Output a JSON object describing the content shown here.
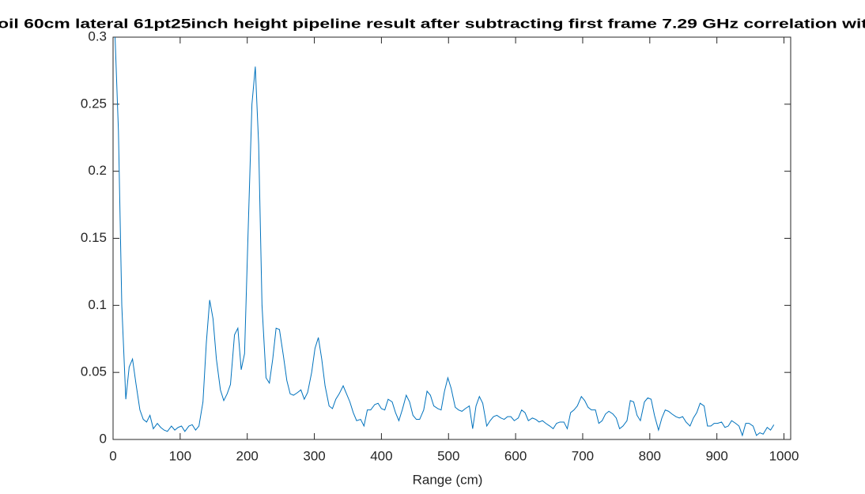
{
  "chart_data": {
    "type": "line",
    "title": "oil 60cm lateral 61pt25inch height pipeline result after subtracting first frame 7.29 GHz correlation wit",
    "xlabel": "Range (cm)",
    "xlim": [
      0,
      1010
    ],
    "xticks": [
      0,
      100,
      200,
      300,
      400,
      500,
      600,
      700,
      800,
      900,
      1000
    ],
    "ylim": [
      0,
      0.3
    ],
    "yticks": [
      0,
      0.05,
      0.1,
      0.15,
      0.2,
      0.25,
      0.3
    ],
    "series": [
      {
        "color": "#0072bd",
        "x": [
          3,
          8,
          13,
          19,
          24,
          29,
          34,
          40,
          45,
          50,
          55,
          60,
          66,
          71,
          76,
          81,
          87,
          92,
          97,
          102,
          107,
          113,
          118,
          123,
          128,
          134,
          139,
          144,
          149,
          154,
          160,
          165,
          170,
          175,
          181,
          186,
          191,
          196,
          201,
          207,
          212,
          217,
          222,
          228,
          233,
          238,
          243,
          248,
          254,
          259,
          264,
          269,
          275,
          280,
          285,
          290,
          296,
          301,
          306,
          311,
          316,
          322,
          327,
          332,
          337,
          343,
          348,
          353,
          358,
          363,
          369,
          374,
          379,
          384,
          390,
          395,
          400,
          405,
          410,
          416,
          421,
          426,
          431,
          437,
          442,
          447,
          452,
          457,
          463,
          468,
          473,
          478,
          484,
          489,
          494,
          499,
          504,
          510,
          515,
          520,
          525,
          531,
          536,
          541,
          546,
          551,
          557,
          562,
          567,
          572,
          578,
          583,
          588,
          593,
          598,
          604,
          609,
          614,
          619,
          625,
          630,
          635,
          640,
          645,
          651,
          656,
          661,
          666,
          672,
          677,
          682,
          687,
          692,
          698,
          703,
          708,
          713,
          719,
          724,
          729,
          734,
          739,
          745,
          750,
          755,
          760,
          766,
          771,
          776,
          781,
          786,
          792,
          797,
          802,
          807,
          813,
          818,
          823,
          828,
          833,
          839,
          844,
          849,
          854,
          860,
          865,
          870,
          875,
          881,
          886,
          891,
          896,
          901,
          907,
          912,
          917,
          922,
          928,
          933,
          938,
          943,
          948,
          954,
          959,
          964,
          969,
          975,
          980,
          985
        ],
        "values": [
          0.3,
          0.23,
          0.1,
          0.03,
          0.054,
          0.06,
          0.042,
          0.022,
          0.015,
          0.013,
          0.018,
          0.008,
          0.012,
          0.009,
          0.007,
          0.006,
          0.01,
          0.007,
          0.009,
          0.01,
          0.006,
          0.01,
          0.011,
          0.007,
          0.01,
          0.028,
          0.072,
          0.104,
          0.09,
          0.06,
          0.037,
          0.029,
          0.034,
          0.041,
          0.078,
          0.083,
          0.052,
          0.064,
          0.15,
          0.25,
          0.278,
          0.22,
          0.1,
          0.046,
          0.042,
          0.06,
          0.083,
          0.082,
          0.062,
          0.044,
          0.034,
          0.033,
          0.035,
          0.037,
          0.03,
          0.035,
          0.05,
          0.068,
          0.076,
          0.06,
          0.04,
          0.025,
          0.023,
          0.03,
          0.034,
          0.04,
          0.034,
          0.028,
          0.02,
          0.014,
          0.015,
          0.01,
          0.022,
          0.022,
          0.026,
          0.027,
          0.023,
          0.022,
          0.03,
          0.028,
          0.02,
          0.014,
          0.022,
          0.033,
          0.028,
          0.018,
          0.015,
          0.015,
          0.022,
          0.036,
          0.033,
          0.025,
          0.023,
          0.022,
          0.036,
          0.046,
          0.038,
          0.024,
          0.022,
          0.021,
          0.023,
          0.025,
          0.008,
          0.025,
          0.032,
          0.027,
          0.01,
          0.014,
          0.017,
          0.018,
          0.016,
          0.015,
          0.017,
          0.017,
          0.014,
          0.016,
          0.022,
          0.02,
          0.014,
          0.016,
          0.015,
          0.013,
          0.014,
          0.012,
          0.01,
          0.008,
          0.012,
          0.013,
          0.013,
          0.008,
          0.02,
          0.022,
          0.025,
          0.032,
          0.029,
          0.024,
          0.022,
          0.022,
          0.012,
          0.014,
          0.019,
          0.021,
          0.019,
          0.016,
          0.008,
          0.01,
          0.014,
          0.029,
          0.028,
          0.018,
          0.014,
          0.028,
          0.031,
          0.03,
          0.018,
          0.007,
          0.016,
          0.022,
          0.021,
          0.019,
          0.017,
          0.016,
          0.017,
          0.013,
          0.01,
          0.016,
          0.02,
          0.027,
          0.025,
          0.01,
          0.01,
          0.012,
          0.012,
          0.013,
          0.009,
          0.01,
          0.014,
          0.012,
          0.01,
          0.003,
          0.012,
          0.012,
          0.01,
          0.003,
          0.005,
          0.004,
          0.009,
          0.007,
          0.011
        ]
      }
    ]
  }
}
